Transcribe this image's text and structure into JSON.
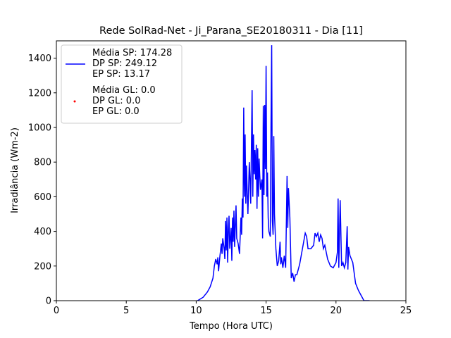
{
  "chart_data": {
    "type": "line",
    "title": "Rede SolRad-Net - Ji_Parana_SE20180311 - Dia [11]",
    "xlabel": "Tempo (Hora UTC)",
    "ylabel": "Irradiância (Wm-2)",
    "xlim": [
      0,
      25
    ],
    "xticks": [
      0,
      5,
      10,
      15,
      20,
      25
    ],
    "ylim": [
      0,
      1500
    ],
    "yticks": [
      0,
      200,
      400,
      600,
      800,
      1000,
      1200,
      1400
    ],
    "legend": "upper left",
    "series": [
      {
        "name": "Média SP: 174.28\nDP SP: 249.12\nEP SP: 13.17",
        "color": "#0000ff",
        "style": "line",
        "x": [
          10.1,
          10.5,
          10.8,
          11.0,
          11.2,
          11.3,
          11.4,
          11.5,
          11.55,
          11.6,
          11.7,
          11.8,
          11.85,
          11.9,
          12.0,
          12.05,
          12.1,
          12.15,
          12.2,
          12.25,
          12.3,
          12.35,
          12.4,
          12.5,
          12.55,
          12.6,
          12.65,
          12.7,
          12.75,
          12.85,
          12.9,
          13.0,
          13.1,
          13.2,
          13.25,
          13.3,
          13.35,
          13.4,
          13.45,
          13.5,
          13.55,
          13.6,
          13.65,
          13.7,
          13.8,
          13.85,
          13.9,
          14.0,
          14.05,
          14.1,
          14.15,
          14.2,
          14.25,
          14.3,
          14.35,
          14.4,
          14.45,
          14.5,
          14.55,
          14.6,
          14.7,
          14.75,
          14.8,
          14.85,
          14.9,
          14.95,
          15.0,
          15.05,
          15.1,
          15.15,
          15.2,
          15.3,
          15.35,
          15.4,
          15.45,
          15.5,
          15.55,
          15.6,
          15.7,
          15.8,
          15.9,
          16.0,
          16.05,
          16.1,
          16.2,
          16.3,
          16.4,
          16.5,
          16.55,
          16.6,
          16.7,
          16.8,
          16.9,
          17.0,
          17.1,
          17.2,
          17.4,
          17.6,
          17.8,
          17.9,
          18.0,
          18.2,
          18.4,
          18.5,
          18.6,
          18.7,
          18.8,
          18.9,
          19.0,
          19.1,
          19.2,
          19.4,
          19.6,
          19.8,
          20.0,
          20.1,
          20.15,
          20.2,
          20.3,
          20.4,
          20.5,
          20.6,
          20.7,
          20.8,
          20.85,
          20.9,
          21.0,
          21.2,
          21.4,
          21.6,
          21.8,
          22.0,
          22.4
        ],
        "values": [
          0,
          20,
          50,
          80,
          130,
          200,
          240,
          210,
          250,
          170,
          260,
          330,
          270,
          360,
          300,
          240,
          460,
          290,
          480,
          220,
          400,
          490,
          300,
          420,
          230,
          480,
          340,
          520,
          310,
          550,
          360,
          330,
          270,
          480,
          380,
          590,
          480,
          1115,
          600,
          960,
          560,
          780,
          620,
          500,
          800,
          700,
          560,
          1215,
          600,
          960,
          730,
          870,
          700,
          900,
          530,
          880,
          600,
          820,
          720,
          640,
          700,
          360,
          1125,
          610,
          1130,
          760,
          1355,
          600,
          740,
          480,
          400,
          370,
          1000,
          1475,
          460,
          380,
          950,
          500,
          300,
          200,
          230,
          340,
          210,
          250,
          190,
          260,
          190,
          720,
          420,
          650,
          480,
          130,
          160,
          110,
          150,
          150,
          210,
          300,
          390,
          370,
          300,
          300,
          320,
          390,
          370,
          390,
          340,
          380,
          360,
          300,
          320,
          240,
          200,
          190,
          220,
          280,
          590,
          190,
          580,
          200,
          220,
          190,
          220,
          430,
          180,
          310,
          260,
          220,
          100,
          60,
          30,
          0,
          0
        ]
      },
      {
        "name": "Média GL: 0.0\nDP GL: 0.0\nEP GL: 0.0",
        "color": "#ff0000",
        "style": "scatter",
        "x": [],
        "values": []
      }
    ]
  }
}
